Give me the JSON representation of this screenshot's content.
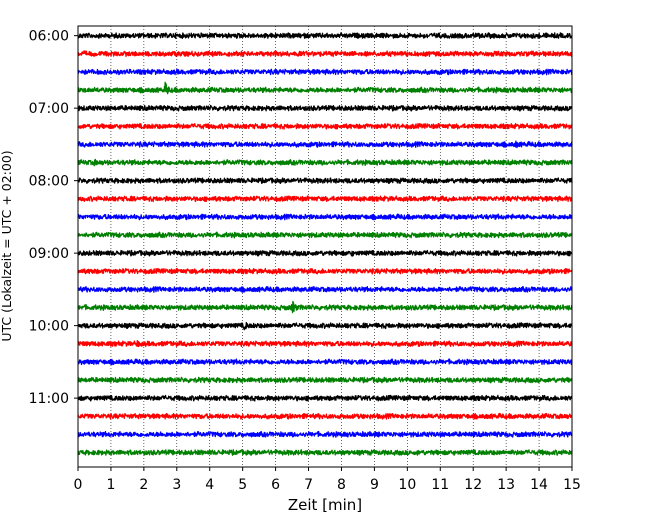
{
  "chart_data": {
    "type": "line",
    "title": "",
    "xlabel": "Zeit  [min]",
    "ylabel": "UTC (Lokalzeit = UTC + 02:00)",
    "xlim": [
      0,
      15
    ],
    "x_ticks": [
      0,
      1,
      2,
      3,
      4,
      5,
      6,
      7,
      8,
      9,
      10,
      11,
      12,
      13,
      14,
      15
    ],
    "ylim": [
      "05:52",
      "11:57"
    ],
    "y_ticks": [
      "06:00",
      "07:00",
      "08:00",
      "09:00",
      "10:00",
      "11:00"
    ],
    "grid": "x-dotted",
    "legend": "none",
    "trace_interval_min": 15,
    "trace_colors": [
      "#000000",
      "#ff0000",
      "#0000ff",
      "#008000"
    ],
    "traces": [
      {
        "start": "06:00",
        "color": "#000000",
        "events": []
      },
      {
        "start": "06:15",
        "color": "#ff0000",
        "events": []
      },
      {
        "start": "06:30",
        "color": "#0000ff",
        "events": [
          {
            "t": 11.8,
            "amp": 0.35
          }
        ]
      },
      {
        "start": "06:45",
        "color": "#008000",
        "events": [
          {
            "t": 0.2,
            "amp": 0.3
          },
          {
            "t": 1.6,
            "amp": 0.3
          },
          {
            "t": 2.65,
            "amp": 0.95
          }
        ]
      },
      {
        "start": "07:00",
        "color": "#000000",
        "events": []
      },
      {
        "start": "07:15",
        "color": "#ff0000",
        "events": []
      },
      {
        "start": "07:30",
        "color": "#0000ff",
        "events": [
          {
            "t": 13.3,
            "amp": 0.45
          }
        ]
      },
      {
        "start": "07:45",
        "color": "#008000",
        "events": [
          {
            "t": 0.5,
            "amp": 0.45
          },
          {
            "t": 2.1,
            "amp": 0.25
          }
        ]
      },
      {
        "start": "08:00",
        "color": "#000000",
        "events": [
          {
            "t": 12.6,
            "amp": 0.25
          }
        ]
      },
      {
        "start": "08:15",
        "color": "#ff0000",
        "events": []
      },
      {
        "start": "08:30",
        "color": "#0000ff",
        "events": []
      },
      {
        "start": "08:45",
        "color": "#008000",
        "events": [
          {
            "t": 4.6,
            "amp": 0.25
          }
        ]
      },
      {
        "start": "09:00",
        "color": "#000000",
        "events": [
          {
            "t": 5.6,
            "amp": 0.3
          },
          {
            "t": 8.3,
            "amp": 0.45
          },
          {
            "t": 10.5,
            "amp": 0.3
          }
        ]
      },
      {
        "start": "09:15",
        "color": "#ff0000",
        "events": [
          {
            "t": 0.4,
            "amp": 0.45
          },
          {
            "t": 5.9,
            "amp": 0.25
          }
        ]
      },
      {
        "start": "09:30",
        "color": "#0000ff",
        "events": [
          {
            "t": 9.0,
            "amp": 0.3
          },
          {
            "t": 10.0,
            "amp": 0.25
          }
        ]
      },
      {
        "start": "09:45",
        "color": "#008000",
        "events": [
          {
            "t": 0.2,
            "amp": 0.35
          },
          {
            "t": 6.5,
            "amp": 0.9
          },
          {
            "t": 9.8,
            "amp": 0.35
          }
        ]
      },
      {
        "start": "10:00",
        "color": "#000000",
        "events": [
          {
            "t": 5.05,
            "amp": 0.6
          },
          {
            "t": 14.3,
            "amp": 0.3
          }
        ]
      },
      {
        "start": "10:15",
        "color": "#ff0000",
        "events": [
          {
            "t": 1.8,
            "amp": 0.45
          }
        ]
      },
      {
        "start": "10:30",
        "color": "#0000ff",
        "events": []
      },
      {
        "start": "10:45",
        "color": "#008000",
        "events": [
          {
            "t": 2.9,
            "amp": 0.25
          }
        ]
      },
      {
        "start": "11:00",
        "color": "#000000",
        "events": []
      },
      {
        "start": "11:15",
        "color": "#ff0000",
        "events": []
      },
      {
        "start": "11:30",
        "color": "#0000ff",
        "events": [
          {
            "t": 13.5,
            "amp": 0.25
          }
        ]
      },
      {
        "start": "11:45",
        "color": "#008000",
        "events": [
          {
            "t": 10.3,
            "amp": 0.35
          }
        ]
      }
    ]
  }
}
